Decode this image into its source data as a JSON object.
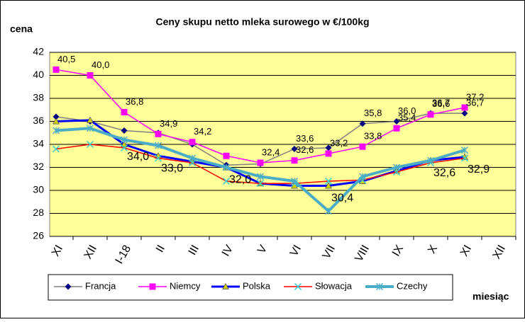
{
  "chart_data": {
    "type": "line",
    "title": "Ceny skupu netto mleka surowego  w €/100kg",
    "y_label": "cena",
    "x_label": "miesiąc",
    "categories": [
      "XI",
      "XII",
      "I-18",
      "II",
      "III",
      "IV",
      "V",
      "VI",
      "VII",
      "VIII",
      "IX",
      "X",
      "XI",
      "XII"
    ],
    "ylim": [
      26,
      42
    ],
    "yticks": [
      26,
      28,
      30,
      32,
      34,
      36,
      38,
      40,
      42
    ],
    "grid": true,
    "legend": "bottom",
    "series": [
      {
        "name": "Francja",
        "color": "#808080",
        "marker_color": "#000080",
        "marker": "diamond",
        "line_width": 1.5,
        "values": [
          36.4,
          36.0,
          35.2,
          35.0,
          34.0,
          32.2,
          32.3,
          33.6,
          33.7,
          35.8,
          36.0,
          36.7,
          36.7,
          null
        ],
        "value_labels": [
          null,
          null,
          null,
          null,
          null,
          null,
          null,
          "33,6",
          null,
          "35,8",
          "36,0",
          "36,7",
          "36,7",
          null
        ]
      },
      {
        "name": "Niemcy",
        "color": "#FF00FF",
        "marker_color": "#FF00FF",
        "marker": "square",
        "line_width": 1.5,
        "values": [
          40.5,
          40.0,
          36.8,
          34.9,
          34.2,
          33.0,
          32.4,
          32.6,
          33.2,
          33.8,
          35.4,
          36.6,
          37.2,
          null
        ],
        "value_labels": [
          "40,5",
          "40,0",
          "36,8",
          "34,9",
          "34,2",
          null,
          "32,4",
          "32,6",
          "33,2",
          "33,8",
          "35,4",
          "36,6",
          "37,2",
          null
        ]
      },
      {
        "name": "Polska",
        "color": "#0000FF",
        "marker_color": "#CCCC00",
        "marker": "triangle",
        "line_width": 3,
        "values": [
          36.0,
          36.1,
          34.0,
          33.0,
          32.5,
          32.0,
          30.6,
          30.4,
          30.4,
          30.8,
          31.7,
          32.6,
          32.9,
          null
        ],
        "value_labels": [
          null,
          null,
          "34,0",
          "33,0",
          null,
          "32,0",
          null,
          null,
          "30,4",
          null,
          null,
          "32,6",
          "32,9",
          null
        ]
      },
      {
        "name": "Słowacja",
        "color": "#FF0000",
        "marker_color": "#33CCCC",
        "marker": "x",
        "line_width": 1.5,
        "values": [
          33.6,
          34.0,
          33.7,
          32.8,
          32.4,
          30.8,
          30.6,
          30.6,
          30.8,
          30.9,
          31.6,
          32.4,
          32.8,
          null
        ]
      },
      {
        "name": "Czechy",
        "color": "#4BACC6",
        "marker_color": "#4BACC6",
        "marker": "star",
        "line_width": 4,
        "values": [
          35.2,
          35.4,
          34.4,
          33.9,
          32.8,
          32.0,
          31.2,
          30.8,
          28.2,
          31.2,
          32.0,
          32.6,
          33.5,
          null
        ]
      }
    ]
  }
}
